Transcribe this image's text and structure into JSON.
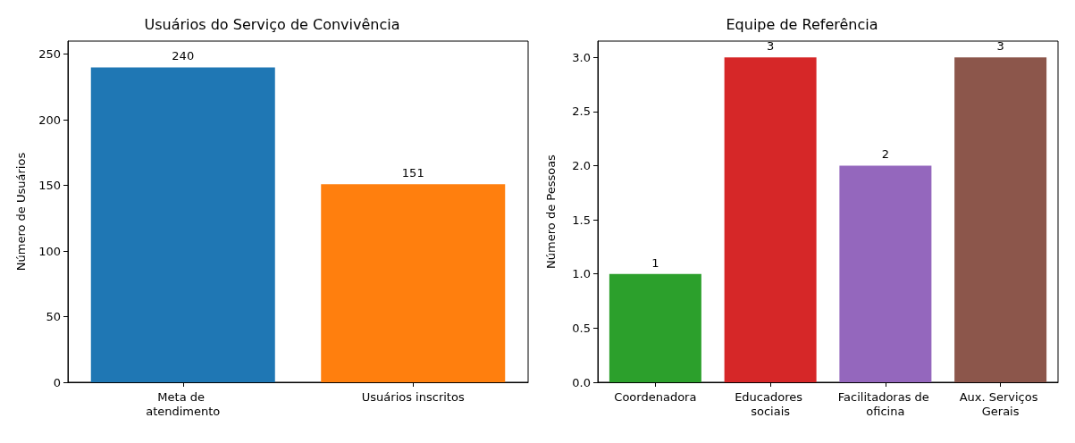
{
  "chart_data": [
    {
      "type": "bar",
      "title": "Usuários do Serviço de Convivência",
      "ylabel": "Número de Usuários",
      "categories": [
        "Meta de atendimento",
        "Usuários inscritos"
      ],
      "values": [
        240,
        151
      ],
      "colors": [
        "#1f77b4",
        "#ff7f0e"
      ],
      "ylim": [
        0,
        260
      ],
      "yticks": [
        0,
        50,
        100,
        150,
        200,
        250
      ],
      "data_labels": true
    },
    {
      "type": "bar",
      "title": "Equipe de Referência",
      "ylabel": "Número de Pessoas",
      "categories": [
        "Coordenadora",
        "Educadores sociais",
        "Facilitadoras de oficina",
        "Aux. Serviços Gerais"
      ],
      "values": [
        1,
        3,
        2,
        3
      ],
      "colors": [
        "#2ca02c",
        "#d62728",
        "#9467bd",
        "#8c564b"
      ],
      "ylim": [
        0,
        3.15
      ],
      "yticks": [
        {
          "value": 0,
          "label": "0.0"
        },
        {
          "value": 0.5,
          "label": "0.5"
        },
        {
          "value": 1,
          "label": "1.0"
        },
        {
          "value": 1.5,
          "label": "1.5"
        },
        {
          "value": 2,
          "label": "2.0"
        },
        {
          "value": 2.5,
          "label": "2.5"
        },
        {
          "value": 3,
          "label": "3.0"
        }
      ],
      "data_labels": true
    }
  ]
}
